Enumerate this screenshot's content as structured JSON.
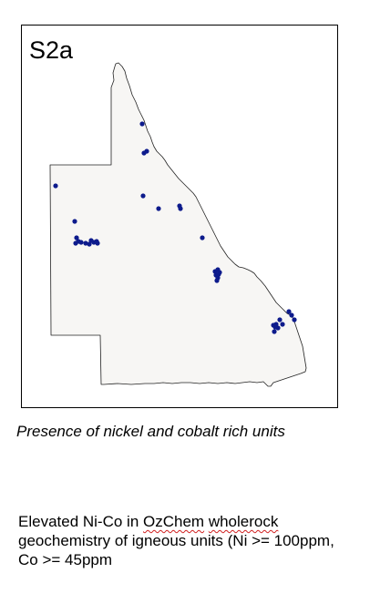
{
  "figure": {
    "panel_label": "S2a",
    "caption": "Presence of nickel and cobalt rich units",
    "description": {
      "prefix": "Elevated Ni-Co in ",
      "word1": "OzChem",
      "space": " ",
      "word2": "wholerock",
      "suffix": " geochemistry of igneous units  (Ni >= 100ppm, Co >= 45ppm"
    }
  },
  "map": {
    "region_fill": "#f7f6f4",
    "outline_color": "#222222",
    "point_color": "#0d1b8c",
    "points": [
      {
        "id": "p1"
      },
      {
        "id": "p2"
      },
      {
        "id": "p3"
      },
      {
        "id": "p4"
      },
      {
        "id": "p5"
      },
      {
        "id": "p6"
      },
      {
        "id": "p7"
      },
      {
        "id": "p8"
      },
      {
        "id": "p9"
      },
      {
        "id": "p10"
      },
      {
        "id": "p11"
      },
      {
        "id": "p12"
      },
      {
        "id": "p13"
      },
      {
        "id": "p14"
      },
      {
        "id": "p15"
      },
      {
        "id": "p16"
      },
      {
        "id": "p17"
      },
      {
        "id": "p18"
      },
      {
        "id": "p19"
      },
      {
        "id": "p20"
      },
      {
        "id": "p21"
      },
      {
        "id": "p22"
      },
      {
        "id": "p23"
      },
      {
        "id": "p24"
      },
      {
        "id": "p25"
      },
      {
        "id": "p26"
      },
      {
        "id": "p27"
      },
      {
        "id": "p28"
      },
      {
        "id": "p29"
      },
      {
        "id": "p30"
      },
      {
        "id": "p31"
      },
      {
        "id": "p32"
      },
      {
        "id": "p33"
      },
      {
        "id": "p34"
      },
      {
        "id": "p35"
      },
      {
        "id": "p36"
      },
      {
        "id": "p37"
      }
    ]
  }
}
